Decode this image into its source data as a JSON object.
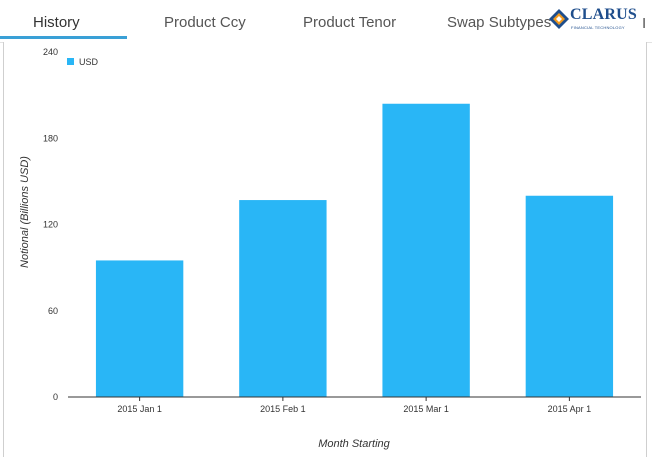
{
  "tabs": [
    {
      "label": "History",
      "active": true
    },
    {
      "label": "Product Ccy",
      "active": false
    },
    {
      "label": "Product Tenor",
      "active": false
    },
    {
      "label": "Swap Subtypes",
      "active": false
    }
  ],
  "logo": {
    "word": "CLARUS",
    "sub": "FINANCIAL TECHNOLOGY",
    "tail": "I"
  },
  "colors": {
    "accent": "#3aa0d6",
    "bar": "#29b6f6",
    "logo": "#1f4e8c"
  },
  "chart_data": {
    "type": "bar",
    "categories": [
      "2015 Jan 1",
      "2015 Feb 1",
      "2015 Mar 1",
      "2015 Apr 1"
    ],
    "series": [
      {
        "name": "USD",
        "values": [
          95,
          137,
          204,
          140
        ]
      }
    ],
    "xlabel": "Month Starting",
    "ylabel": "Notional (Billions USD)",
    "ylim": [
      0,
      240
    ],
    "yticks": [
      0,
      60,
      120,
      180,
      240
    ],
    "grid": false,
    "legend": "top-left"
  }
}
